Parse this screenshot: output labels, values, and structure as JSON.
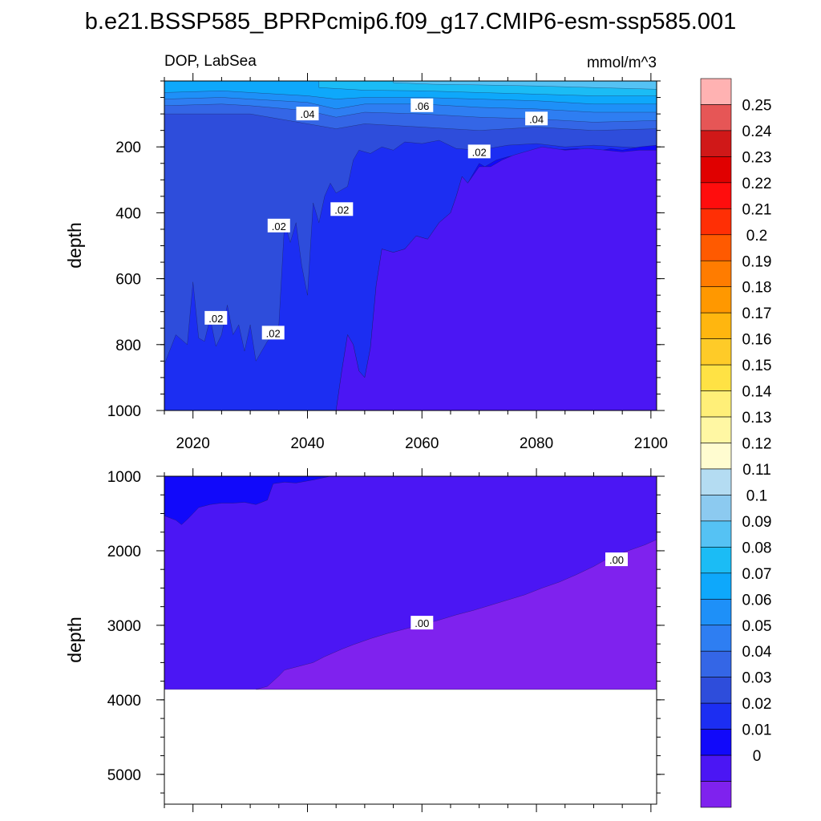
{
  "title": "b.e21.BSSP585_BPRPcmip6.f09_g17.CMIP6-esm-ssp585.001",
  "colors": {
    "levels": [
      "#7f22ee",
      "#4b16f4",
      "#1109fa",
      "#1c2ef2",
      "#2e4ddb",
      "#3466e6",
      "#2e7ef2",
      "#1e90f8",
      "#0ea8fb",
      "#1bbcf5",
      "#55c2f4",
      "#8ccaf0",
      "#b4dcf2",
      "#fffcd0",
      "#fff7a3",
      "#ffef78",
      "#ffe244",
      "#fecb28",
      "#ffb60f",
      "#ff9800",
      "#ff7c00",
      "#ff5a00",
      "#ff2f05",
      "#ff0d0d",
      "#e00000",
      "#d01818",
      "#e65656",
      "#ffb2b2"
    ],
    "background": "#ffffff"
  },
  "chart_data": [
    {
      "type": "contour",
      "panel": "upper",
      "variable_label": "DOP, LabSea",
      "units": "mmol/m^3",
      "ylabel": "depth",
      "xlabel": "",
      "xlim": [
        2015,
        2101
      ],
      "ylim": [
        1000,
        0
      ],
      "y_reversed": true,
      "x_ticks": [
        2020,
        2040,
        2060,
        2080,
        2100
      ],
      "x_tick_labels": [
        "2020",
        "2040",
        "2060",
        "2080",
        "2100"
      ],
      "y_ticks": [
        200,
        400,
        600,
        800,
        1000
      ],
      "y_tick_labels": [
        "200",
        "400",
        "600",
        "800",
        "1000"
      ],
      "contour_labels": [
        {
          "text": ".06",
          "x": 2060,
          "y": 75
        },
        {
          "text": ".04",
          "x": 2040,
          "y": 100
        },
        {
          "text": ".04",
          "x": 2080,
          "y": 115
        },
        {
          "text": ".02",
          "x": 2070,
          "y": 215
        },
        {
          "text": ".02",
          "x": 2046,
          "y": 390
        },
        {
          "text": ".02",
          "x": 2035,
          "y": 440
        },
        {
          "text": ".02",
          "x": 2024,
          "y": 720
        },
        {
          "text": ".02",
          "x": 2034,
          "y": 765
        }
      ],
      "regions": [
        {
          "level": 0.03,
          "boundary": [
            [
              2015,
              0
            ],
            [
              2101,
              0
            ],
            [
              2101,
              1000
            ],
            [
              2015,
              1000
            ]
          ]
        },
        {
          "level": 0.04,
          "boundary": [
            [
              2015,
              0
            ],
            [
              2101,
              0
            ],
            [
              2101,
              145
            ],
            [
              2090,
              150
            ],
            [
              2080,
              140
            ],
            [
              2070,
              150
            ],
            [
              2060,
              140
            ],
            [
              2050,
              130
            ],
            [
              2045,
              145
            ],
            [
              2040,
              130
            ],
            [
              2030,
              100
            ],
            [
              2025,
              100
            ],
            [
              2015,
              100
            ]
          ]
        },
        {
          "level": 0.05,
          "boundary": [
            [
              2015,
              0
            ],
            [
              2101,
              0
            ],
            [
              2101,
              120
            ],
            [
              2090,
              125
            ],
            [
              2080,
              115
            ],
            [
              2070,
              110
            ],
            [
              2060,
              100
            ],
            [
              2050,
              95
            ],
            [
              2045,
              110
            ],
            [
              2040,
              90
            ],
            [
              2030,
              75
            ],
            [
              2025,
              70
            ],
            [
              2015,
              75
            ]
          ]
        },
        {
          "level": 0.06,
          "boundary": [
            [
              2015,
              0
            ],
            [
              2101,
              0
            ],
            [
              2101,
              95
            ],
            [
              2090,
              95
            ],
            [
              2080,
              85
            ],
            [
              2070,
              80
            ],
            [
              2060,
              70
            ],
            [
              2050,
              70
            ],
            [
              2045,
              85
            ],
            [
              2040,
              65
            ],
            [
              2030,
              55
            ],
            [
              2025,
              50
            ],
            [
              2015,
              55
            ]
          ]
        },
        {
          "level": 0.07,
          "boundary": [
            [
              2015,
              0
            ],
            [
              2101,
              0
            ],
            [
              2101,
              70
            ],
            [
              2090,
              70
            ],
            [
              2080,
              60
            ],
            [
              2070,
              55
            ],
            [
              2060,
              50
            ],
            [
              2050,
              50
            ],
            [
              2045,
              55
            ],
            [
              2040,
              45
            ],
            [
              2030,
              35
            ],
            [
              2025,
              30
            ],
            [
              2015,
              35
            ]
          ]
        },
        {
          "level": 0.08,
          "boundary": [
            [
              2042,
              0
            ],
            [
              2101,
              0
            ],
            [
              2101,
              45
            ],
            [
              2090,
              45
            ],
            [
              2080,
              40
            ],
            [
              2070,
              35
            ],
            [
              2060,
              30
            ],
            [
              2050,
              28
            ],
            [
              2042,
              20
            ]
          ]
        },
        {
          "level": 0.09,
          "boundary": [
            [
              2055,
              0
            ],
            [
              2101,
              0
            ],
            [
              2101,
              25
            ],
            [
              2090,
              20
            ],
            [
              2080,
              15
            ],
            [
              2070,
              12
            ],
            [
              2062,
              10
            ],
            [
              2055,
              5
            ]
          ]
        },
        {
          "level": 0.02,
          "boundary": [
            [
              2015,
              860
            ],
            [
              2017,
              770
            ],
            [
              2019,
              800
            ],
            [
              2020,
              610
            ],
            [
              2021,
              780
            ],
            [
              2022,
              790
            ],
            [
              2023,
              720
            ],
            [
              2024,
              805
            ],
            [
              2025,
              770
            ],
            [
              2026,
              680
            ],
            [
              2027,
              770
            ],
            [
              2028,
              740
            ],
            [
              2029,
              820
            ],
            [
              2030,
              740
            ],
            [
              2031,
              850
            ],
            [
              2033,
              790
            ],
            [
              2035,
              740
            ],
            [
              2036,
              430
            ],
            [
              2037,
              490
            ],
            [
              2038,
              430
            ],
            [
              2039,
              560
            ],
            [
              2040,
              650
            ],
            [
              2041,
              370
            ],
            [
              2042,
              430
            ],
            [
              2043,
              350
            ],
            [
              2044,
              310
            ],
            [
              2045,
              340
            ],
            [
              2047,
              320
            ],
            [
              2048,
              240
            ],
            [
              2049,
              210
            ],
            [
              2051,
              220
            ],
            [
              2053,
              200
            ],
            [
              2055,
              210
            ],
            [
              2057,
              185
            ],
            [
              2060,
              190
            ],
            [
              2063,
              180
            ],
            [
              2066,
              205
            ],
            [
              2070,
              210
            ],
            [
              2075,
              195
            ],
            [
              2080,
              190
            ],
            [
              2085,
              200
            ],
            [
              2090,
              195
            ],
            [
              2095,
              200
            ],
            [
              2101,
              205
            ],
            [
              2101,
              1000
            ],
            [
              2015,
              1000
            ]
          ]
        },
        {
          "level": 0.01,
          "boundary": [
            [
              2045,
              1000
            ],
            [
              2046,
              880
            ],
            [
              2047,
              770
            ],
            [
              2048,
              800
            ],
            [
              2049,
              880
            ],
            [
              2050,
              900
            ],
            [
              2051,
              810
            ],
            [
              2052,
              620
            ],
            [
              2053,
              510
            ],
            [
              2055,
              520
            ],
            [
              2057,
              510
            ],
            [
              2059,
              470
            ],
            [
              2061,
              480
            ],
            [
              2063,
              430
            ],
            [
              2065,
              400
            ],
            [
              2066,
              350
            ],
            [
              2067,
              290
            ],
            [
              2068,
              310
            ],
            [
              2070,
              250
            ],
            [
              2071,
              260
            ],
            [
              2073,
              240
            ],
            [
              2075,
              230
            ],
            [
              2078,
              220
            ],
            [
              2080,
              225
            ],
            [
              2083,
              210
            ],
            [
              2087,
              205
            ],
            [
              2090,
              215
            ],
            [
              2093,
              205
            ],
            [
              2095,
              210
            ],
            [
              2098,
              200
            ],
            [
              2101,
              195
            ],
            [
              2101,
              1000
            ]
          ]
        },
        {
          "level": 0.0,
          "boundary": [
            [
              2045,
              1000
            ],
            [
              2046,
              880
            ],
            [
              2047,
              770
            ],
            [
              2048,
              800
            ],
            [
              2049,
              880
            ],
            [
              2050,
              900
            ],
            [
              2051,
              810
            ],
            [
              2052,
              620
            ],
            [
              2053,
              510
            ],
            [
              2055,
              520
            ],
            [
              2057,
              510
            ],
            [
              2059,
              470
            ],
            [
              2061,
              480
            ],
            [
              2063,
              430
            ],
            [
              2065,
              400
            ],
            [
              2066,
              350
            ],
            [
              2067,
              290
            ],
            [
              2068,
              310
            ],
            [
              2070,
              260
            ],
            [
              2072,
              260
            ],
            [
              2074,
              240
            ],
            [
              2076,
              225
            ],
            [
              2079,
              210
            ],
            [
              2081,
              200
            ],
            [
              2085,
              210
            ],
            [
              2089,
              205
            ],
            [
              2092,
              210
            ],
            [
              2095,
              215
            ],
            [
              2098,
              210
            ],
            [
              2101,
              210
            ],
            [
              2101,
              1000
            ]
          ]
        }
      ]
    },
    {
      "type": "contour",
      "panel": "lower",
      "ylabel": "depth",
      "xlabel": "",
      "xlim": [
        2015,
        2101
      ],
      "ylim": [
        5400,
        1000
      ],
      "y_reversed": true,
      "x_ticks": [
        2020,
        2040,
        2060,
        2080,
        2100
      ],
      "x_tick_labels": [
        "",
        "",
        "",
        "",
        ""
      ],
      "y_ticks": [
        1000,
        2000,
        3000,
        4000,
        5000
      ],
      "y_tick_labels": [
        "1000",
        "2000",
        "3000",
        "4000",
        "5000"
      ],
      "data_max_depth": 3860,
      "contour_labels": [
        {
          "text": ".00",
          "x": 2060,
          "y": 2970
        },
        {
          "text": ".00",
          "x": 2094,
          "y": 2120
        }
      ],
      "regions": [
        {
          "level": 0.0,
          "boundary": [
            [
              2015,
              1000
            ],
            [
              2101,
              1000
            ],
            [
              2101,
              3860
            ],
            [
              2015,
              3860
            ]
          ]
        },
        {
          "level": 0.01,
          "boundary": [
            [
              2015,
              1000
            ],
            [
              2044,
              1000
            ],
            [
              2041,
              1050
            ],
            [
              2038,
              1090
            ],
            [
              2036,
              1080
            ],
            [
              2034,
              1100
            ],
            [
              2033,
              1320
            ],
            [
              2031,
              1380
            ],
            [
              2029,
              1350
            ],
            [
              2027,
              1360
            ],
            [
              2025,
              1360
            ],
            [
              2023,
              1380
            ],
            [
              2021,
              1420
            ],
            [
              2020,
              1500
            ],
            [
              2019,
              1580
            ],
            [
              2018,
              1650
            ],
            [
              2017,
              1590
            ],
            [
              2015,
              1530
            ]
          ]
        },
        {
          "level": -0.01,
          "boundary": [
            [
              2031,
              3860
            ],
            [
              2033,
              3820
            ],
            [
              2035,
              3680
            ],
            [
              2036,
              3600
            ],
            [
              2038,
              3560
            ],
            [
              2041,
              3500
            ],
            [
              2043,
              3420
            ],
            [
              2046,
              3320
            ],
            [
              2048,
              3260
            ],
            [
              2051,
              3180
            ],
            [
              2054,
              3110
            ],
            [
              2057,
              3050
            ],
            [
              2060,
              2990
            ],
            [
              2063,
              2930
            ],
            [
              2066,
              2860
            ],
            [
              2069,
              2800
            ],
            [
              2072,
              2730
            ],
            [
              2075,
              2660
            ],
            [
              2078,
              2590
            ],
            [
              2081,
              2500
            ],
            [
              2084,
              2420
            ],
            [
              2087,
              2320
            ],
            [
              2090,
              2210
            ],
            [
              2093,
              2080
            ],
            [
              2096,
              2000
            ],
            [
              2099,
              1920
            ],
            [
              2101,
              1850
            ],
            [
              2101,
              3860
            ]
          ]
        }
      ]
    }
  ],
  "colorbar": {
    "labels": [
      "0.25",
      "0.24",
      "0.23",
      "0.22",
      "0.21",
      "0.2",
      "0.19",
      "0.18",
      "0.17",
      "0.16",
      "0.15",
      "0.14",
      "0.13",
      "0.12",
      "0.11",
      "0.1",
      "0.09",
      "0.08",
      "0.07",
      "0.06",
      "0.05",
      "0.04",
      "0.03",
      "0.02",
      "0.01",
      "0"
    ]
  }
}
